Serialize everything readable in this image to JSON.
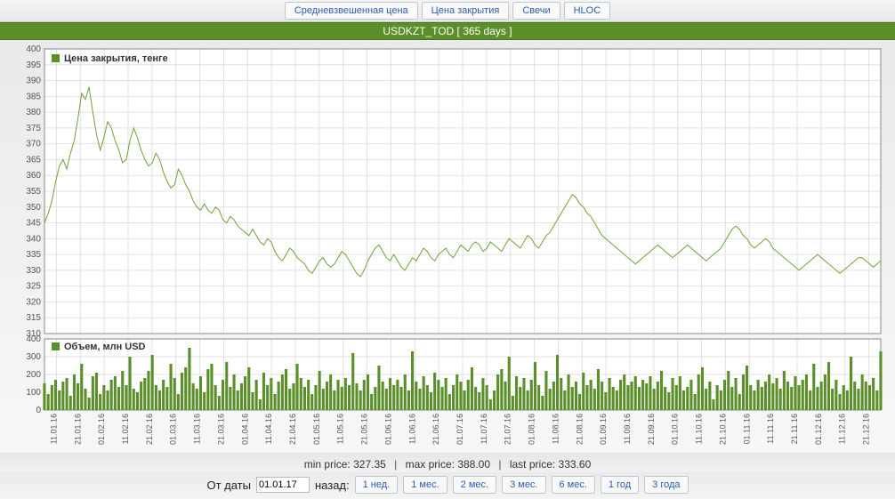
{
  "tabs": {
    "items": [
      "Средневзвешенная цена",
      "Цена закрытия",
      "Свечи",
      "HLOC"
    ]
  },
  "header": {
    "title": "USDKZT_TOD [ 365 days ]"
  },
  "price_chart": {
    "type": "line",
    "legend": "Цена закрытия, тенге",
    "ylim": [
      310,
      400
    ],
    "ytick_step": 5,
    "line_color": "#6fa23a",
    "background_color": "#ffffff",
    "grid_color": "#e2e2e2",
    "legend_color": "#5a8f29",
    "series": [
      345,
      348,
      352,
      358,
      363,
      365,
      362,
      367,
      371,
      378,
      386,
      384,
      388,
      380,
      373,
      368,
      372,
      377,
      375,
      371,
      368,
      364,
      365,
      371,
      375,
      372,
      368,
      365,
      363,
      364,
      367,
      365,
      361,
      358,
      356,
      357,
      362,
      360,
      357,
      355,
      352,
      350,
      349,
      351,
      349,
      348,
      350,
      349,
      346,
      345,
      347,
      346,
      344,
      343,
      342,
      341,
      343,
      341,
      339,
      338,
      340,
      339,
      336,
      334,
      333,
      335,
      337,
      336,
      334,
      333,
      332,
      330,
      329,
      331,
      333,
      334,
      332,
      331,
      332,
      334,
      336,
      335,
      333,
      331,
      329,
      328,
      330,
      333,
      335,
      337,
      338,
      336,
      334,
      333,
      335,
      333,
      331,
      330,
      332,
      334,
      333,
      335,
      337,
      336,
      334,
      333,
      335,
      336,
      337,
      335,
      334,
      336,
      338,
      337,
      336,
      338,
      339,
      338,
      336,
      337,
      339,
      338,
      337,
      336,
      338,
      340,
      339,
      338,
      337,
      339,
      341,
      340,
      338,
      337,
      339,
      341,
      342,
      344,
      346,
      348,
      350,
      352,
      354,
      353,
      351,
      350,
      348,
      347,
      345,
      343,
      341,
      340,
      339,
      338,
      337,
      336,
      335,
      334,
      333,
      332,
      333,
      334,
      335,
      336,
      337,
      338,
      337,
      336,
      335,
      334,
      335,
      336,
      337,
      338,
      337,
      336,
      335,
      334,
      333,
      334,
      335,
      336,
      337,
      339,
      341,
      343,
      344,
      343,
      341,
      340,
      338,
      337,
      338,
      339,
      340,
      339,
      337,
      336,
      335,
      334,
      333,
      332,
      331,
      330,
      331,
      332,
      333,
      334,
      335,
      334,
      333,
      332,
      331,
      330,
      329,
      330,
      331,
      332,
      333,
      334,
      334,
      333,
      332,
      331,
      332,
      333
    ]
  },
  "volume_chart": {
    "type": "bar",
    "legend": "Объем, млн USD",
    "ylim": [
      0,
      400
    ],
    "ytick_step": 100,
    "bar_color": "#5a8f29",
    "background_color": "#ffffff",
    "grid_color": "#e2e2e2",
    "series": [
      150,
      90,
      140,
      170,
      110,
      160,
      180,
      80,
      200,
      150,
      260,
      120,
      70,
      190,
      210,
      90,
      140,
      110,
      170,
      190,
      130,
      220,
      140,
      300,
      120,
      100,
      160,
      180,
      220,
      310,
      140,
      110,
      170,
      130,
      260,
      180,
      90,
      210,
      240,
      350,
      150,
      120,
      190,
      100,
      230,
      260,
      140,
      80,
      170,
      270,
      130,
      200,
      110,
      150,
      190,
      240,
      100,
      170,
      60,
      210,
      140,
      180,
      90,
      160,
      200,
      230,
      120,
      150,
      260,
      180,
      130,
      170,
      90,
      140,
      220,
      120,
      160,
      200,
      110,
      170,
      130,
      180,
      140,
      320,
      150,
      110,
      170,
      200,
      90,
      130,
      250,
      160,
      120,
      180,
      140,
      170,
      130,
      200,
      110,
      330,
      160,
      120,
      190,
      140,
      100,
      210,
      170,
      130,
      180,
      90,
      140,
      200,
      160,
      110,
      170,
      240,
      130,
      100,
      180,
      140,
      60,
      110,
      200,
      230,
      160,
      300,
      80,
      190,
      130,
      180,
      110,
      170,
      270,
      140,
      80,
      220,
      120,
      160,
      310,
      180,
      110,
      200,
      130,
      160,
      90,
      210,
      140,
      170,
      120,
      230,
      160,
      100,
      180,
      130,
      110,
      170,
      200,
      140,
      160,
      190,
      130,
      170,
      150,
      190,
      120,
      160,
      220,
      130,
      100,
      180,
      140,
      190,
      110,
      130,
      170,
      90,
      200,
      240,
      120,
      160,
      60,
      140,
      110,
      170,
      220,
      130,
      180,
      90,
      200,
      250,
      140,
      110,
      170,
      130,
      160,
      200,
      150,
      180,
      120,
      220,
      160,
      130,
      190,
      140,
      170,
      200,
      110,
      260,
      130,
      160,
      200,
      270,
      120,
      170,
      90,
      140,
      110,
      300,
      160,
      120,
      200,
      160,
      140,
      180,
      110,
      330
    ]
  },
  "xaxis": {
    "labels": [
      "11.01.16",
      "21.01.16",
      "01.02.16",
      "11.02.16",
      "21.02.16",
      "01.03.16",
      "11.03.16",
      "21.03.16",
      "01.04.16",
      "11.04.16",
      "21.04.16",
      "01.05.16",
      "11.05.16",
      "21.05.16",
      "01.06.16",
      "11.06.16",
      "21.06.16",
      "01.07.16",
      "11.07.16",
      "21.07.16",
      "01.08.16",
      "11.08.16",
      "21.08.16",
      "01.09.16",
      "11.09.16",
      "21.09.16",
      "01.10.16",
      "11.10.16",
      "21.10.16",
      "01.11.16",
      "11.11.16",
      "21.11.16",
      "01.12.16",
      "11.12.16",
      "21.12.16"
    ]
  },
  "stats": {
    "min_label": "min price:",
    "min_value": "327.35",
    "max_label": "max price:",
    "max_value": "388.00",
    "last_label": "last price:",
    "last_value": "333.60"
  },
  "bottom": {
    "from_label": "От даты",
    "date_value": "01.01.17",
    "back_label": "назад:",
    "ranges": [
      "1 нед.",
      "1 мес.",
      "2 мес.",
      "3 мес.",
      "6 мес.",
      "1 год",
      "3 года"
    ]
  }
}
